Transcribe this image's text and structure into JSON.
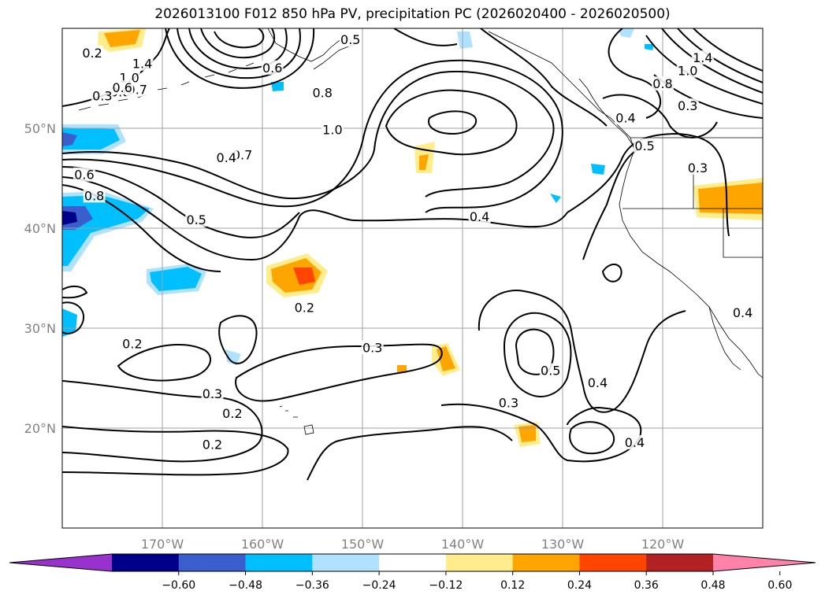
{
  "title": "2026013100 F012 850 hPa PV, precipitation PC (2026020400 - 2026020500)",
  "map": {
    "lon_range": [
      -180,
      -110
    ],
    "lat_range": [
      10,
      60
    ],
    "lat_labels": [
      "50°N",
      "40°N",
      "30°N",
      "20°N"
    ],
    "lat_values": [
      50,
      40,
      30,
      20
    ],
    "lon_labels": [
      "170°W",
      "160°W",
      "150°W",
      "140°W",
      "130°W",
      "120°W"
    ],
    "lon_values": [
      -170,
      -160,
      -150,
      -140,
      -130,
      -120
    ],
    "grid": true
  },
  "contour_labels": [
    {
      "text": "1.4",
      "lon": -172.0,
      "lat": 56.4
    },
    {
      "text": "1.0",
      "lon": -173.3,
      "lat": 55.0
    },
    {
      "text": "0.8",
      "lon": -174.2,
      "lat": 53.6
    },
    {
      "text": "0.7",
      "lon": -172.5,
      "lat": 53.8
    },
    {
      "text": "0.2",
      "lon": -177.0,
      "lat": 57.5
    },
    {
      "text": "0.3",
      "lon": -176.0,
      "lat": 53.2
    },
    {
      "text": "0.6",
      "lon": -174.0,
      "lat": 54.0
    },
    {
      "text": "0.5",
      "lon": -151.2,
      "lat": 58.8
    },
    {
      "text": "0.6",
      "lon": -159.0,
      "lat": 56.0
    },
    {
      "text": "0.8",
      "lon": -154.0,
      "lat": 53.5
    },
    {
      "text": "1.0",
      "lon": -153.0,
      "lat": 49.8
    },
    {
      "text": "0.7",
      "lon": -162.0,
      "lat": 47.3
    },
    {
      "text": "0.4",
      "lon": -163.6,
      "lat": 47.0
    },
    {
      "text": "0.6",
      "lon": -177.8,
      "lat": 45.3
    },
    {
      "text": "0.8",
      "lon": -176.8,
      "lat": 43.2
    },
    {
      "text": "0.5",
      "lon": -166.6,
      "lat": 40.8
    },
    {
      "text": "0.4",
      "lon": -138.3,
      "lat": 41.1
    },
    {
      "text": "0.2",
      "lon": -155.8,
      "lat": 32.0
    },
    {
      "text": "0.3",
      "lon": -149.0,
      "lat": 28.0
    },
    {
      "text": "0.2",
      "lon": -173.0,
      "lat": 28.4
    },
    {
      "text": "0.3",
      "lon": -165.0,
      "lat": 23.4
    },
    {
      "text": "0.2",
      "lon": -163.0,
      "lat": 21.4
    },
    {
      "text": "0.2",
      "lon": -165.0,
      "lat": 18.3
    },
    {
      "text": "0.3",
      "lon": -135.4,
      "lat": 22.5
    },
    {
      "text": "0.5",
      "lon": -131.2,
      "lat": 25.7
    },
    {
      "text": "0.4",
      "lon": -126.5,
      "lat": 24.5
    },
    {
      "text": "0.4",
      "lon": -122.8,
      "lat": 18.5
    },
    {
      "text": "1.4",
      "lon": -116.0,
      "lat": 57.0
    },
    {
      "text": "1.0",
      "lon": -117.5,
      "lat": 55.7
    },
    {
      "text": "0.8",
      "lon": -120.0,
      "lat": 54.4
    },
    {
      "text": "0.3",
      "lon": -117.5,
      "lat": 52.2
    },
    {
      "text": "0.4",
      "lon": -123.7,
      "lat": 51.0
    },
    {
      "text": "0.5",
      "lon": -121.8,
      "lat": 48.2
    },
    {
      "text": "0.3",
      "lon": -116.5,
      "lat": 46.0
    },
    {
      "text": "0.4",
      "lon": -112.0,
      "lat": 31.5
    }
  ],
  "colorbar": {
    "ticks": [
      "−0.60",
      "−0.48",
      "−0.36",
      "−0.24",
      "−0.12",
      "0.12",
      "0.24",
      "0.36",
      "0.48",
      "0.60"
    ],
    "bounds": [
      -0.6,
      -0.48,
      -0.36,
      -0.24,
      -0.12,
      0.12,
      0.24,
      0.36,
      0.48,
      0.6
    ],
    "colors": [
      "#9932cc",
      "#00008b",
      "#3a5fcd",
      "#00bfff",
      "#b0e2ff",
      "#ffffff",
      "#ffec8b",
      "#ffa500",
      "#ff4500",
      "#b22222",
      "#ff82ab"
    ],
    "extend": "both"
  }
}
